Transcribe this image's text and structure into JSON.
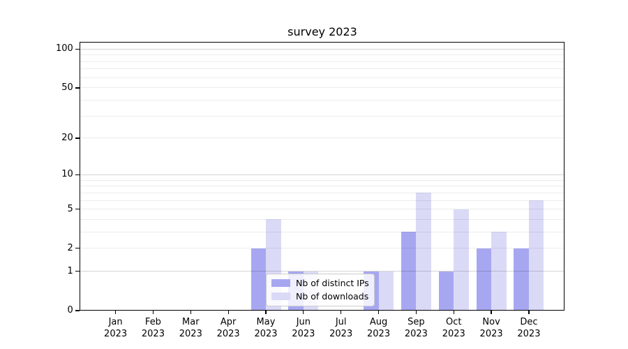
{
  "figure": {
    "background": "#ffffff",
    "spine_color": "#000000",
    "text_color": "#000000"
  },
  "chart_data": {
    "type": "bar",
    "title": "survey 2023",
    "categories": [
      "Jan\n2023",
      "Feb\n2023",
      "Mar\n2023",
      "Apr\n2023",
      "May\n2023",
      "Jun\n2023",
      "Jul\n2023",
      "Aug\n2023",
      "Sep\n2023",
      "Oct\n2023",
      "Nov\n2023",
      "Dec\n2023"
    ],
    "series": [
      {
        "name": "Nb of distinct IPs",
        "color": "#a7a7f1",
        "values": [
          0,
          0,
          0,
          0,
          2,
          1,
          0,
          1,
          3,
          1,
          2,
          2
        ]
      },
      {
        "name": "Nb of downloads",
        "color": "#dadaf7",
        "values": [
          0,
          0,
          0,
          0,
          4,
          1,
          0,
          1,
          7,
          5,
          3,
          6
        ]
      }
    ],
    "xlabel": "",
    "ylabel": "",
    "yscale": "log1p",
    "ylim": [
      0,
      115
    ],
    "ytick_values": [
      0,
      1,
      2,
      5,
      10,
      20,
      50,
      100
    ],
    "ytick_labels": [
      "0",
      "1",
      "2",
      "5",
      "10",
      "20",
      "50",
      "100"
    ],
    "grid": {
      "on": true,
      "major_values": [
        1,
        10,
        100
      ],
      "minor_values": [
        2,
        3,
        4,
        5,
        6,
        7,
        8,
        9,
        20,
        30,
        40,
        50,
        60,
        70,
        80,
        90
      ],
      "major_color": "rgba(0,0,0,0.17)",
      "minor_color": "rgba(0,0,0,0.075)"
    },
    "legend_position": "lower center"
  }
}
